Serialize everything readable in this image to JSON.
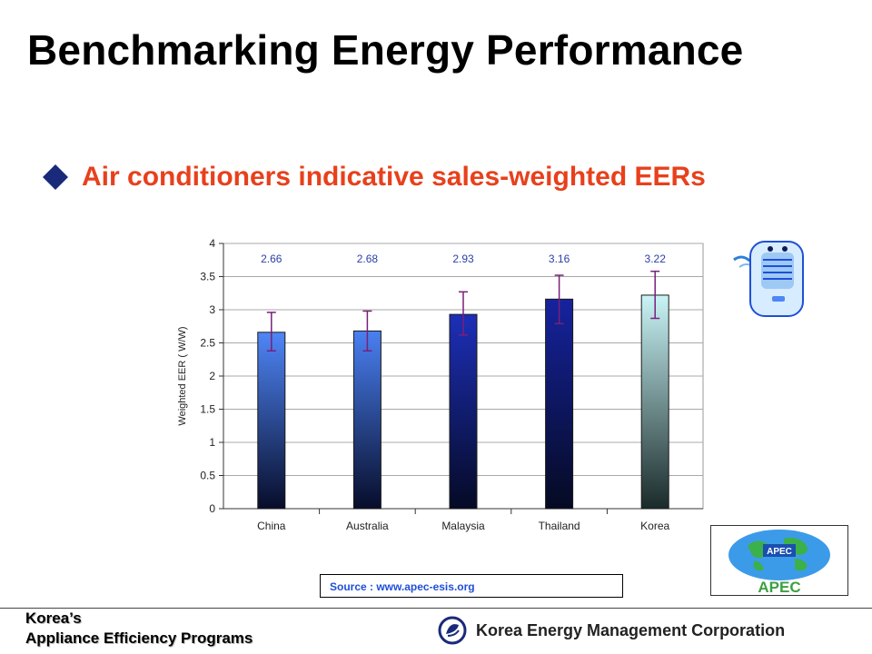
{
  "slide": {
    "title": "Benchmarking Energy Performance",
    "bullet": "Air conditioners indicative sales-weighted EERs",
    "source": "Source :  www.apec-esis.org",
    "apec_logo_text": "APEC",
    "footer": {
      "line1": "Korea’s",
      "line2": "Appliance Efficiency Programs",
      "org": "Korea Energy Management Corporation"
    }
  },
  "colors": {
    "title": "#000000",
    "bullet_text": "#e8401c",
    "bullet_marker": "#1a2a7a",
    "source_text": "#1f4fd8",
    "data_label": "#2b3ea8",
    "error_bar": "#7a1f7a"
  },
  "chart_data": {
    "type": "bar",
    "categories": [
      "China",
      "Australia",
      "Malaysia",
      "Thailand",
      "Korea"
    ],
    "values": [
      2.66,
      2.68,
      2.93,
      3.16,
      3.22
    ],
    "error_low": [
      2.38,
      2.38,
      2.62,
      2.79,
      2.87
    ],
    "error_high": [
      2.96,
      2.98,
      3.27,
      3.52,
      3.58
    ],
    "data_labels": [
      "2.66",
      "2.68",
      "2.93",
      "3.16",
      "3.22"
    ],
    "ylabel": "Weighted EER ( W/W)",
    "xlabel": "",
    "ylim": [
      0,
      4
    ],
    "yticks": [
      0,
      0.5,
      1,
      1.5,
      2,
      2.5,
      3,
      3.5,
      4
    ],
    "ytick_labels": [
      "0",
      "0.5",
      "1",
      "1.5",
      "2",
      "2.5",
      "3",
      "3.5",
      "4"
    ],
    "grid": true,
    "bar_colors": [
      [
        "#4f86f7",
        "#070d2a"
      ],
      [
        "#4a80f2",
        "#070d2a"
      ],
      [
        "#1d2fb8",
        "#050a25"
      ],
      [
        "#16239e",
        "#050a22"
      ],
      [
        "#c9f4f6",
        "#1a2a2a"
      ]
    ]
  }
}
